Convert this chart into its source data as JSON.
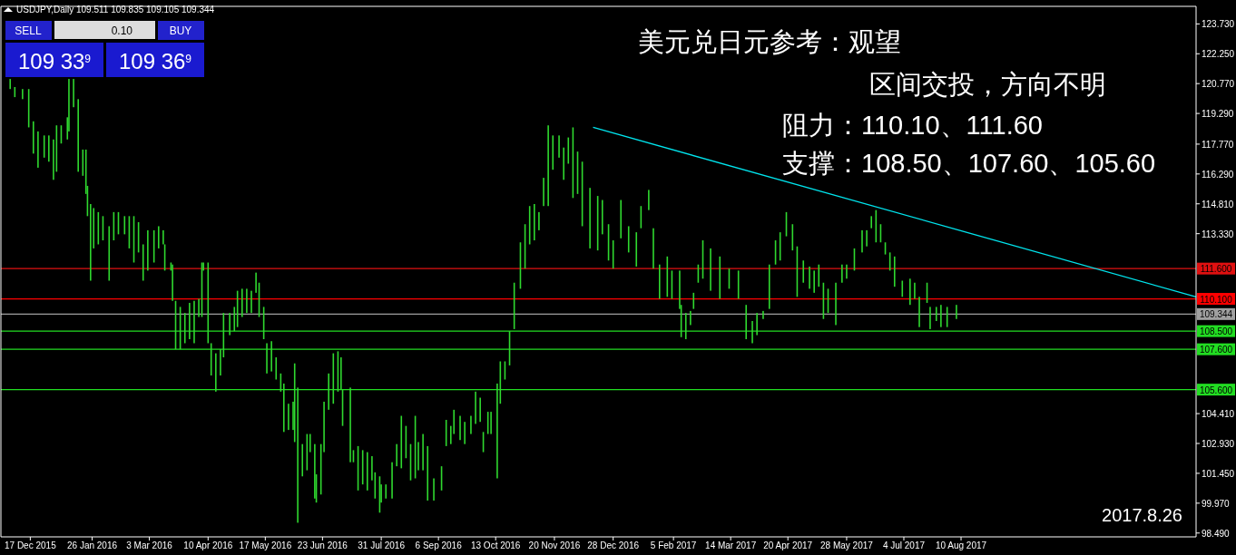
{
  "chart_data": {
    "type": "bar",
    "title": "USDJPY,Daily  109.511 109.835 109.105 109.344",
    "annotations": [
      "SELL",
      "0.10",
      "BUY",
      "109 33$^{9}$",
      "109 36$^{9}$",
      "美元兑日元参考：观望",
      "区间交投，方向不明",
      "阻力：110.10、111.60",
      "支撑：108.50、107.60、105.60",
      "2017.8.26"
    ],
    "xlim": [
      "2015-11-28",
      "2018-01-09"
    ],
    "ylim": [
      98.3,
      124.6
    ],
    "xticks": [
      {
        "value": "2015-12-17",
        "label": "17 Dec 2015"
      },
      {
        "value": "2016-01-26",
        "label": "26 Jan 2016"
      },
      {
        "value": "2016-03-03",
        "label": "3 Mar 2016"
      },
      {
        "value": "2016-04-10",
        "label": "10 Apr 2016"
      },
      {
        "value": "2016-05-17",
        "label": "17 May 2016"
      },
      {
        "value": "2016-06-23",
        "label": "23 Jun 2016"
      },
      {
        "value": "2016-07-31",
        "label": "31 Jul 2016"
      },
      {
        "value": "2016-09-06",
        "label": "6 Sep 2016"
      },
      {
        "value": "2016-10-13",
        "label": "13 Oct 2016"
      },
      {
        "value": "2016-11-20",
        "label": "20 Nov 2016"
      },
      {
        "value": "2016-12-28",
        "label": "28 Dec 2016"
      },
      {
        "value": "2017-02-05",
        "label": "5 Feb 2017"
      },
      {
        "value": "2017-03-14",
        "label": "14 Mar 2017"
      },
      {
        "value": "2017-04-20",
        "label": "20 Apr 2017"
      },
      {
        "value": "2017-05-28",
        "label": "28 May 2017"
      },
      {
        "value": "2017-07-04",
        "label": "4 Jul 2017"
      },
      {
        "value": "2017-08-10",
        "label": "10 Aug 2017"
      }
    ],
    "yticks": [
      {
        "value": 123.73,
        "label": "123.730"
      },
      {
        "value": 122.25,
        "label": "122.250"
      },
      {
        "value": 120.77,
        "label": "120.770"
      },
      {
        "value": 119.29,
        "label": "119.290"
      },
      {
        "value": 117.77,
        "label": "117.770"
      },
      {
        "value": 116.29,
        "label": "116.290"
      },
      {
        "value": 114.81,
        "label": "114.810"
      },
      {
        "value": 113.33,
        "label": "113.330"
      },
      {
        "value": 104.41,
        "label": "104.410"
      },
      {
        "value": 102.93,
        "label": "102.930"
      },
      {
        "value": 101.45,
        "label": "101.450"
      },
      {
        "value": 99.97,
        "label": "99.970"
      },
      {
        "value": 98.49,
        "label": "98.490"
      }
    ],
    "ref_lines": [
      {
        "axis": "y",
        "value": 111.6,
        "label": "111.600",
        "color": "#e01010"
      },
      {
        "axis": "y",
        "value": 110.1,
        "label": "110.100",
        "color": "#ff0000"
      },
      {
        "axis": "y",
        "value": 109.344,
        "label": "109.344",
        "color": "#a0a0a0"
      },
      {
        "axis": "y",
        "value": 108.5,
        "label": "108.500",
        "color": "#22dd22"
      },
      {
        "axis": "y",
        "value": 107.6,
        "label": "107.600",
        "color": "#22dd22"
      },
      {
        "axis": "y",
        "value": 105.6,
        "label": "105.600",
        "color": "#22dd22"
      }
    ],
    "series": [
      {
        "color": "#2fd82f",
        "x": [
          "2015-12-04",
          "2015-12-07",
          "2015-12-12",
          "2015-12-16",
          "2015-12-19",
          "2015-12-22",
          "2015-12-26",
          "2015-12-29",
          "2016-01-01",
          "2016-01-03",
          "2016-01-06",
          "2016-01-10",
          "2016-01-11",
          "2016-01-14",
          "2016-01-17",
          "2016-01-20",
          "2016-01-22",
          "2016-01-23",
          "2016-01-25",
          "2016-01-27",
          "2016-01-30",
          "2016-02-02",
          "2016-02-06",
          "2016-02-09",
          "2016-02-12",
          "2016-02-16",
          "2016-02-19",
          "2016-02-22",
          "2016-02-25",
          "2016-02-28",
          "2016-03-02",
          "2016-03-06",
          "2016-03-09",
          "2016-03-12",
          "2016-03-13",
          "2016-03-17",
          "2016-03-18",
          "2016-03-20",
          "2016-03-23",
          "2016-03-26",
          "2016-03-29",
          "2016-04-01",
          "2016-04-04",
          "2016-04-06",
          "2016-04-07",
          "2016-04-10",
          "2016-04-12",
          "2016-04-15",
          "2016-04-18",
          "2016-04-20",
          "2016-04-24",
          "2016-04-27",
          "2016-04-29",
          "2016-05-02",
          "2016-05-05",
          "2016-05-08",
          "2016-05-11",
          "2016-05-13",
          "2016-05-16",
          "2016-05-18",
          "2016-05-21",
          "2016-05-24",
          "2016-05-27",
          "2016-05-29",
          "2016-06-01",
          "2016-06-04",
          "2016-06-05",
          "2016-06-07",
          "2016-06-10",
          "2016-06-13",
          "2016-06-15",
          "2016-06-18",
          "2016-06-19",
          "2016-06-22",
          "2016-06-24",
          "2016-06-27",
          "2016-06-30",
          "2016-07-03",
          "2016-07-05",
          "2016-07-06",
          "2016-07-11",
          "2016-07-13",
          "2016-07-16",
          "2016-07-19",
          "2016-07-22",
          "2016-07-25",
          "2016-07-27",
          "2016-07-30",
          "2016-07-31",
          "2016-08-03",
          "2016-08-07",
          "2016-08-10",
          "2016-08-13",
          "2016-08-16",
          "2016-08-19",
          "2016-08-22",
          "2016-08-24",
          "2016-08-27",
          "2016-08-30",
          "2016-09-03",
          "2016-09-08",
          "2016-09-11",
          "2016-09-14",
          "2016-09-16",
          "2016-09-20",
          "2016-09-23",
          "2016-09-27",
          "2016-09-30",
          "2016-10-03",
          "2016-10-05",
          "2016-10-08",
          "2016-10-10",
          "2016-10-14",
          "2016-10-16",
          "2016-10-19",
          "2016-10-22",
          "2016-10-25",
          "2016-10-29",
          "2016-11-01",
          "2016-11-04",
          "2016-11-07",
          "2016-11-10",
          "2016-11-13",
          "2016-11-16",
          "2016-11-19",
          "2016-11-23",
          "2016-11-26",
          "2016-11-29",
          "2016-12-02",
          "2016-12-05",
          "2016-12-08",
          "2016-12-13",
          "2016-12-18",
          "2016-12-21",
          "2016-12-25",
          "2016-12-28",
          "2017-01-02",
          "2017-01-07",
          "2017-01-12",
          "2017-01-15",
          "2017-01-20",
          "2017-01-23",
          "2017-01-27",
          "2017-02-01",
          "2017-02-04",
          "2017-02-09",
          "2017-02-10",
          "2017-02-13",
          "2017-02-16",
          "2017-02-18",
          "2017-02-21",
          "2017-02-24",
          "2017-03-01",
          "2017-03-07",
          "2017-03-13",
          "2017-03-19",
          "2017-03-24",
          "2017-03-28",
          "2017-03-31",
          "2017-04-04",
          "2017-04-08",
          "2017-04-12",
          "2017-04-15",
          "2017-04-19",
          "2017-04-23",
          "2017-04-26",
          "2017-04-30",
          "2017-05-04",
          "2017-05-07",
          "2017-05-10",
          "2017-05-13",
          "2017-05-16",
          "2017-05-21",
          "2017-05-25",
          "2017-05-28",
          "2017-06-02",
          "2017-06-07",
          "2017-06-10",
          "2017-06-13",
          "2017-06-16",
          "2017-06-19",
          "2017-06-22",
          "2017-06-25",
          "2017-06-28",
          "2017-07-03",
          "2017-07-08",
          "2017-07-11",
          "2017-07-14",
          "2017-07-19",
          "2017-07-21",
          "2017-07-25",
          "2017-07-28",
          "2017-08-01",
          "2017-08-07"
        ],
        "base": [
          120.5,
          120.1,
          120.0,
          118.6,
          117.3,
          116.6,
          117.1,
          116.9,
          116.0,
          116.4,
          117.8,
          118.0,
          118.4,
          119.6,
          116.4,
          116.2,
          115.3,
          114.2,
          111.0,
          112.6,
          112.8,
          113.0,
          111.0,
          113.0,
          113.3,
          113.3,
          112.6,
          111.9,
          112.4,
          111.0,
          111.5,
          111.9,
          112.6,
          112.8,
          111.5,
          111.5,
          110.0,
          107.6,
          107.6,
          107.9,
          108.1,
          107.9,
          109.2,
          109.2,
          111.5,
          107.9,
          106.3,
          105.5,
          106.3,
          107.2,
          108.3,
          108.5,
          108.7,
          109.2,
          109.4,
          109.4,
          110.4,
          109.2,
          108.1,
          106.4,
          106.5,
          106.1,
          105.5,
          103.5,
          103.6,
          103.6,
          103.0,
          99.0,
          101.3,
          101.6,
          102.5,
          100.2,
          100.0,
          100.4,
          102.5,
          104.6,
          104.9,
          105.5,
          105.6,
          103.8,
          102.0,
          102.0,
          100.6,
          100.9,
          100.6,
          101.1,
          100.2,
          99.5,
          100.0,
          100.2,
          100.2,
          101.8,
          101.7,
          102.2,
          101.1,
          101.2,
          101.6,
          101.6,
          100.1,
          100.1,
          100.6,
          102.8,
          102.9,
          103.4,
          103.1,
          102.9,
          103.4,
          103.9,
          104.0,
          102.5,
          103.4,
          103.4,
          101.2,
          104.9,
          106.1,
          106.8,
          108.6,
          110.6,
          111.6,
          112.8,
          113.0,
          113.5,
          114.7,
          114.7,
          116.5,
          117.1,
          116.0,
          116.8,
          115.1,
          115.3,
          113.7,
          112.6,
          112.5,
          113.3,
          112.0,
          111.6,
          113.1,
          112.4,
          111.7,
          113.6,
          114.5,
          111.6,
          110.1,
          110.2,
          110.1,
          109.6,
          108.2,
          108.1,
          108.8,
          109.6,
          110.9,
          111.1,
          110.5,
          110.1,
          110.6,
          110.1,
          108.1,
          107.9,
          108.3,
          109.1,
          109.6,
          111.8,
          112.0,
          113.2,
          112.5,
          110.2,
          110.9,
          110.6,
          110.4,
          110.7,
          109.1,
          109.4,
          108.8,
          110.9,
          111.1,
          111.5,
          112.4,
          112.7,
          113.6,
          112.9,
          112.9,
          112.3,
          111.5,
          110.7,
          110.2,
          109.8,
          110.1,
          108.7,
          109.9,
          108.6,
          109.0,
          108.7,
          108.7,
          109.1
        ],
        "values": [
          0.5,
          0.5,
          0.5,
          1.9,
          1.6,
          1.8,
          1.1,
          1.3,
          2.0,
          2.3,
          0.9,
          1.1,
          2.6,
          1.4,
          3.6,
          1.3,
          2.2,
          1.5,
          3.8,
          2.0,
          1.6,
          1.2,
          2.7,
          1.4,
          1.1,
          0.9,
          1.6,
          2.3,
          1.5,
          1.8,
          2.0,
          1.6,
          1.1,
          0.7,
          1.3,
          0.4,
          1.8,
          2.4,
          2.1,
          1.5,
          1.8,
          2.1,
          0.9,
          2.7,
          0.4,
          4.0,
          1.6,
          1.9,
          1.3,
          2.2,
          1.1,
          1.2,
          1.8,
          1.4,
          1.2,
          1.1,
          1.0,
          1.7,
          1.6,
          1.5,
          1.5,
          1.1,
          0.9,
          2.4,
          1.3,
          1.4,
          3.9,
          6.7,
          1.6,
          1.8,
          0.9,
          2.7,
          1.4,
          2.5,
          2.5,
          1.8,
          2.5,
          2.0,
          1.6,
          1.8,
          3.7,
          0.6,
          2.2,
          1.7,
          1.9,
          1.2,
          1.3,
          1.8,
          0.9,
          0.7,
          1.8,
          1.1,
          2.6,
          1.6,
          1.8,
          3.1,
          1.4,
          1.8,
          2.7,
          1.1,
          1.2,
          1.3,
          0.9,
          1.2,
          1.2,
          1.1,
          0.9,
          1.6,
          1.2,
          1.0,
          1.1,
          1.1,
          4.7,
          2.1,
          0.9,
          1.7,
          2.3,
          2.3,
          2.2,
          1.9,
          1.8,
          0.9,
          1.4,
          4.0,
          1.7,
          1.1,
          1.6,
          1.3,
          3.5,
          2.1,
          3.2,
          3.0,
          2.7,
          1.7,
          1.8,
          1.4,
          1.9,
          1.3,
          1.7,
          1.1,
          1.0,
          2.0,
          1.7,
          2.0,
          1.4,
          1.9,
          1.6,
          1.3,
          0.7,
          0.8,
          0.9,
          1.9,
          2.1,
          2.1,
          1.0,
          1.4,
          1.7,
          1.1,
          1.1,
          0.4,
          2.2,
          1.2,
          1.4,
          1.2,
          1.3,
          2.5,
          1.1,
          1.1,
          1.1,
          1.1,
          1.8,
          1.2,
          2.1,
          0.9,
          0.7,
          1.1,
          1.1,
          0.8,
          0.6,
          1.6,
          0.9,
          0.6,
          0.9,
          1.5,
          0.8,
          1.3,
          0.8,
          1.5,
          1.0,
          1.1,
          0.7,
          1.1,
          1.0,
          0.7
        ]
      },
      {
        "type": "line",
        "color": "#00e5ee",
        "x": [
          "2016-12-15",
          "2018-01-09"
        ],
        "values": [
          118.6,
          110.2
        ]
      }
    ]
  }
}
